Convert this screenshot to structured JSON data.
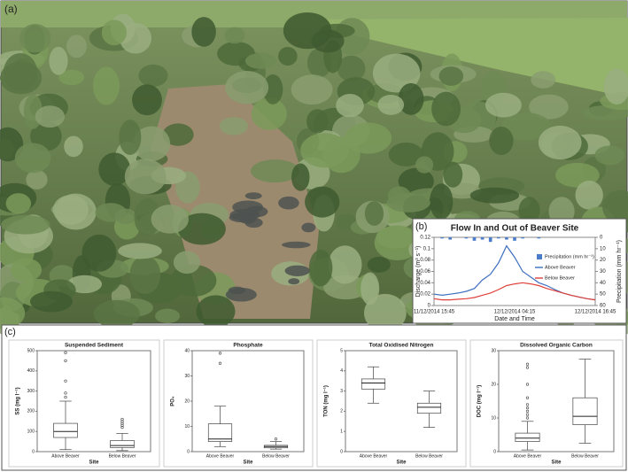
{
  "panel_labels": [
    "(a)",
    "(b)",
    "(c)"
  ],
  "chart_data": [
    {
      "type": "line",
      "title": "Flow In and Out of Beaver Site",
      "x_label": "Date and Time",
      "y_label": "Discharge (m³ s⁻¹)",
      "y2_label": "Precipitation (mm hr⁻¹)",
      "legend": "right",
      "categories": [
        "11/12/2014 15:45",
        null,
        null,
        null,
        null,
        null,
        null,
        null,
        null,
        null,
        "12/12/2014 04:15",
        null,
        null,
        null,
        null,
        null,
        null,
        null,
        null,
        null,
        "12/12/2014 16:45"
      ],
      "ylim": [
        0,
        0.12
      ],
      "yticks": [
        0,
        0.02,
        0.04,
        0.06,
        0.08,
        0.1,
        0.12
      ],
      "y2lim": [
        60,
        0
      ],
      "y2ticks": [
        0,
        10,
        20,
        30,
        40,
        50,
        60
      ],
      "series": [
        {
          "name": "Precipitation (mm hr⁻¹)",
          "type": "bar",
          "axis": "y2",
          "color": "#4a7cc9",
          "values": [
            0,
            1,
            2,
            0,
            1,
            3,
            2,
            4,
            1,
            2,
            3,
            1,
            0,
            1,
            0,
            0,
            0,
            0,
            0,
            0,
            0
          ]
        },
        {
          "name": "Above Beaver",
          "type": "line",
          "color": "#3f6fc0",
          "values": [
            0.02,
            0.018,
            0.02,
            0.022,
            0.025,
            0.03,
            0.045,
            0.055,
            0.075,
            0.105,
            0.085,
            0.06,
            0.05,
            0.04,
            0.035,
            0.028,
            0.022,
            0.018,
            0.015,
            0.012,
            0.01
          ]
        },
        {
          "name": "Below Beaver",
          "type": "line",
          "color": "#e0403a",
          "values": [
            0.012,
            0.01,
            0.01,
            0.011,
            0.012,
            0.014,
            0.018,
            0.022,
            0.028,
            0.035,
            0.038,
            0.04,
            0.038,
            0.035,
            0.03,
            0.026,
            0.022,
            0.018,
            0.015,
            0.012,
            0.01
          ]
        }
      ]
    },
    {
      "type": "box",
      "title": "Suspended Sediment",
      "y_label": "SS (mg l⁻¹)",
      "x_label": "Site",
      "categories": [
        "Above Beaver",
        "Below Beaver"
      ],
      "ylim": [
        0,
        500
      ],
      "yticks": [
        0,
        100,
        200,
        300,
        400,
        500
      ],
      "boxes": [
        {
          "whislo": 10,
          "q1": 70,
          "med": 100,
          "q3": 140,
          "whishi": 250,
          "fliers": [
            270,
            290,
            350,
            450,
            490
          ]
        },
        {
          "whislo": 5,
          "q1": 20,
          "med": 30,
          "q3": 55,
          "whishi": 90,
          "fliers": [
            120,
            130,
            140,
            150,
            160
          ]
        }
      ]
    },
    {
      "type": "box",
      "title": "Phosphate",
      "y_label": "PO₄",
      "x_label": "Site",
      "categories": [
        "Above Beaver",
        "Below Beaver"
      ],
      "ylim": [
        0,
        40
      ],
      "yticks": [
        0,
        10,
        20,
        30,
        40
      ],
      "boxes": [
        {
          "whislo": 2,
          "q1": 4,
          "med": 5,
          "q3": 11,
          "whishi": 18,
          "fliers": [
            35,
            39
          ]
        },
        {
          "whislo": 1,
          "q1": 1.5,
          "med": 2,
          "q3": 2.5,
          "whishi": 4,
          "fliers": [
            5
          ]
        }
      ]
    },
    {
      "type": "box",
      "title": "Total Oxidised Nitrogen",
      "y_label": "TON (mg l⁻¹)",
      "x_label": "Site",
      "categories": [
        "Above Beaver",
        "Below Beaver"
      ],
      "ylim": [
        0,
        5
      ],
      "yticks": [
        0,
        1,
        2,
        3,
        4,
        5
      ],
      "boxes": [
        {
          "whislo": 2.4,
          "q1": 3.1,
          "med": 3.4,
          "q3": 3.6,
          "whishi": 4.2,
          "fliers": []
        },
        {
          "whislo": 1.2,
          "q1": 1.9,
          "med": 2.2,
          "q3": 2.4,
          "whishi": 3,
          "fliers": []
        }
      ]
    },
    {
      "type": "box",
      "title": "Dissolved Organic Carbon",
      "y_label": "DOC (mg l⁻¹)",
      "x_label": "Site",
      "categories": [
        "Above Beaver",
        "Below Beaver"
      ],
      "ylim": [
        0,
        30
      ],
      "yticks": [
        0,
        10,
        20,
        30
      ],
      "boxes": [
        {
          "whislo": 0.5,
          "q1": 3,
          "med": 4,
          "q3": 5.5,
          "whishi": 9,
          "fliers": [
            10,
            11,
            12,
            13,
            14,
            16,
            20,
            25,
            26
          ]
        },
        {
          "whislo": 2.5,
          "q1": 8,
          "med": 10.5,
          "q3": 16,
          "whishi": 27.5,
          "fliers": []
        }
      ]
    }
  ]
}
